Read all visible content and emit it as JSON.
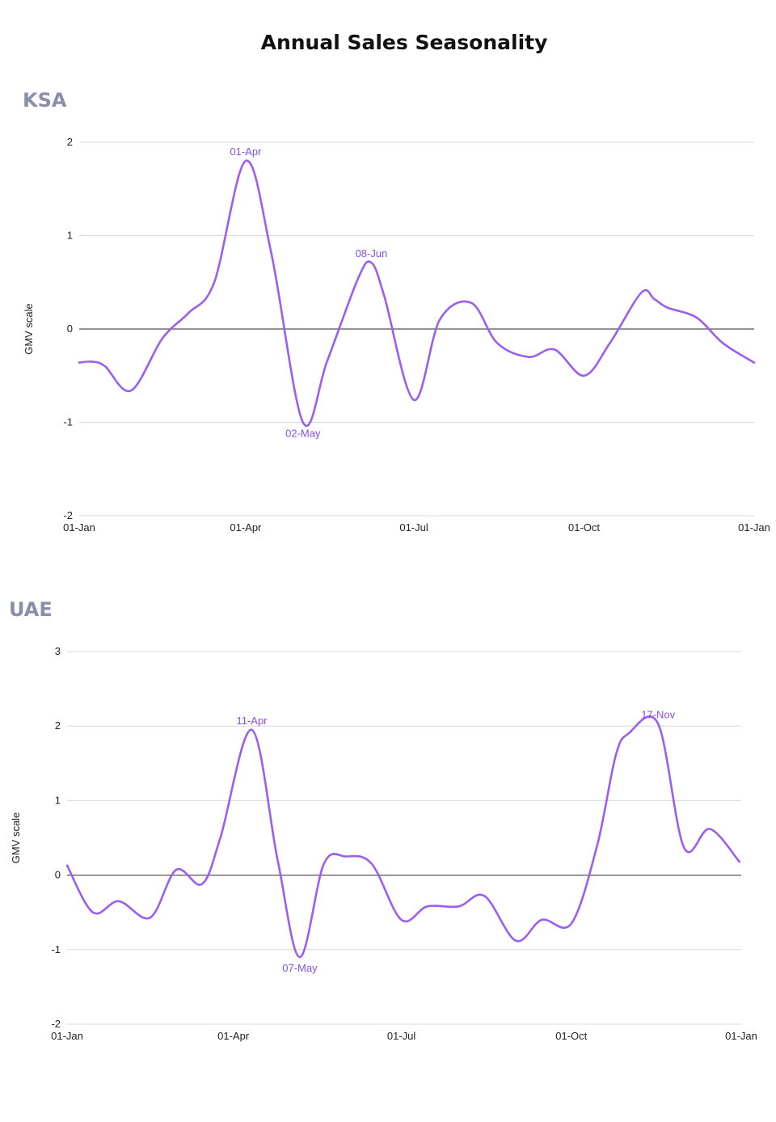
{
  "page": {
    "title": "Annual Sales Seasonality"
  },
  "colors": {
    "series": "#9b5ef0",
    "annotation": "#8a4ce8",
    "heading": "#8c8cab"
  },
  "chart_data": [
    {
      "type": "line",
      "title": "KSA",
      "ylabel": "GMV scale",
      "xlabel": "",
      "ylim": [
        -2,
        2
      ],
      "yticks": [
        2,
        1,
        0,
        -1,
        -2
      ],
      "x_domain": [
        "01-Jan",
        "01-Jan"
      ],
      "xticks": [
        "01-Jan",
        "01-Apr",
        "01-Jul",
        "01-Oct",
        "01-Jan"
      ],
      "grid": true,
      "series": [
        {
          "x": [
            "01-Jan",
            "08-Jan",
            "15-Jan",
            "29-Jan",
            "15-Feb",
            "01-Mar",
            "15-Mar",
            "01-Apr",
            "15-Apr",
            "02-May",
            "15-May",
            "01-Jun",
            "08-Jun",
            "15-Jun",
            "01-Jul",
            "15-Jul",
            "01-Aug",
            "15-Aug",
            "01-Sep",
            "15-Sep",
            "01-Oct",
            "15-Oct",
            "01-Nov",
            "08-Nov",
            "15-Nov",
            "01-Dec",
            "15-Dec",
            "01-Jan"
          ],
          "y": [
            -0.36,
            -0.35,
            -0.4,
            -0.66,
            -0.1,
            0.17,
            0.5,
            1.8,
            0.8,
            -1.0,
            -0.35,
            0.55,
            0.71,
            0.35,
            -0.76,
            0.1,
            0.28,
            -0.15,
            -0.3,
            -0.22,
            -0.5,
            -0.15,
            0.39,
            0.32,
            0.23,
            0.12,
            -0.15,
            -0.36
          ]
        }
      ],
      "annotations": [
        {
          "label": "01-Apr",
          "x": "01-Apr",
          "y": 1.8,
          "pos": "above"
        },
        {
          "label": "02-May",
          "x": "02-May",
          "y": -1.0,
          "pos": "below"
        },
        {
          "label": "08-Jun",
          "x": "08-Jun",
          "y": 0.71,
          "pos": "above"
        }
      ]
    },
    {
      "type": "line",
      "title": "UAE",
      "ylabel": "GMV scale",
      "xlabel": "",
      "ylim": [
        -2,
        3
      ],
      "yticks": [
        3,
        2,
        1,
        0,
        -1,
        -2
      ],
      "x_domain": [
        "01-Jan",
        "01-Jan"
      ],
      "xticks": [
        "01-Jan",
        "01-Apr",
        "01-Jul",
        "01-Oct",
        "01-Jan"
      ],
      "grid": true,
      "series": [
        {
          "x": [
            "01-Jan",
            "15-Jan",
            "29-Jan",
            "15-Feb",
            "01-Mar",
            "15-Mar",
            "25-Mar",
            "11-Apr",
            "25-Apr",
            "07-May",
            "20-May",
            "01-Jun",
            "15-Jun",
            "01-Jul",
            "15-Jul",
            "01-Aug",
            "15-Aug",
            "01-Sep",
            "15-Sep",
            "01-Oct",
            "15-Oct",
            "25-Oct",
            "01-Nov",
            "17-Nov",
            "01-Dec",
            "15-Dec",
            "31-Dec"
          ],
          "y": [
            0.13,
            -0.5,
            -0.35,
            -0.57,
            0.07,
            -0.12,
            0.5,
            1.95,
            0.2,
            -1.1,
            0.15,
            0.25,
            0.15,
            -0.6,
            -0.42,
            -0.42,
            -0.28,
            -0.88,
            -0.6,
            -0.65,
            0.4,
            1.6,
            1.9,
            2.03,
            0.37,
            0.62,
            0.18
          ]
        }
      ],
      "annotations": [
        {
          "label": "11-Apr",
          "x": "11-Apr",
          "y": 1.95,
          "pos": "above"
        },
        {
          "label": "07-May",
          "x": "07-May",
          "y": -1.1,
          "pos": "below"
        },
        {
          "label": "17-Nov",
          "x": "17-Nov",
          "y": 2.03,
          "pos": "above"
        }
      ]
    }
  ]
}
